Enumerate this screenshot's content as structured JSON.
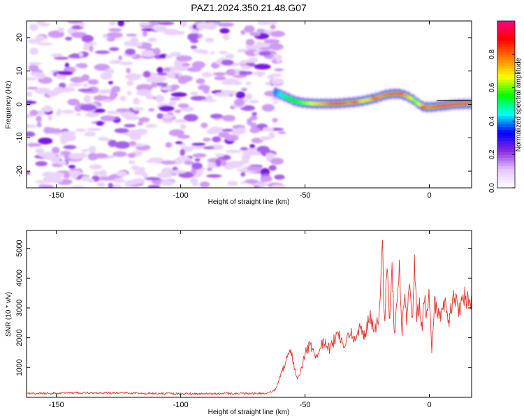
{
  "figure": {
    "title": "PAZ1.2024.350.21.48.G07"
  },
  "chart_data": [
    {
      "type": "heatmap",
      "title": "PAZ1.2024.350.21.48.G07",
      "xlabel": "Height of straight line (km)",
      "ylabel": "Frequency (Hz)",
      "xlim": [
        -162,
        17
      ],
      "ylim": [
        -25,
        25
      ],
      "x_ticks": [
        "-150",
        "-100",
        "-50",
        "0"
      ],
      "x_tick_values": [
        -150,
        -100,
        -50,
        0
      ],
      "y_ticks": [
        "20",
        "10",
        "0",
        "-10",
        "-20"
      ],
      "y_tick_values": [
        20,
        10,
        0,
        -10,
        -20
      ],
      "grid": false,
      "noise_region_x": [
        -162,
        -59
      ],
      "ridge_region_x": [
        -59,
        17
      ],
      "ridge": {
        "x": [
          -63,
          -60,
          -57,
          -54,
          -51,
          -48,
          -45,
          -42,
          -39,
          -36,
          -33,
          -30,
          -27,
          -24,
          -21,
          -18,
          -15,
          -12,
          -9,
          -6,
          -4,
          -2,
          1,
          4,
          7,
          10,
          13,
          17
        ],
        "frequency": [
          4,
          3,
          2,
          1,
          0.5,
          0.3,
          0.2,
          0.2,
          0.2,
          0.3,
          0.5,
          0.7,
          1,
          1.5,
          2,
          2.8,
          3.2,
          3.2,
          2.5,
          1.2,
          0,
          -0.8,
          -0.8,
          -0.5,
          -0.3,
          0,
          0.1,
          0.1
        ],
        "amplitude": [
          0.35,
          0.45,
          0.5,
          0.55,
          0.6,
          0.65,
          0.7,
          0.75,
          0.85,
          0.9,
          0.8,
          0.75,
          0.7,
          0.7,
          0.75,
          0.8,
          0.85,
          0.8,
          0.75,
          0.6,
          0.65,
          0.75,
          0.8,
          0.85,
          0.9,
          0.95,
          0.97,
          0.95
        ]
      },
      "colorbar": {
        "label": "Normalized spectral amplitude",
        "range": [
          0,
          1
        ],
        "ticks": [
          "0.0",
          "0.2",
          "0.4",
          "0.6",
          "0.8"
        ],
        "tick_values": [
          0,
          0.2,
          0.4,
          0.6,
          0.8
        ],
        "colors": [
          "#ffffff",
          "#e6c6ff",
          "#8a2be2",
          "#0000ff",
          "#00ffff",
          "#00ff00",
          "#ffff00",
          "#ff8000",
          "#ff0000",
          "#ff0080"
        ]
      }
    },
    {
      "type": "line",
      "xlabel": "Height of straight line (km)",
      "ylabel": "SNR (10 * v/v)",
      "xlim": [
        -162,
        17
      ],
      "ylim": [
        0,
        5600
      ],
      "x_ticks": [
        "-150",
        "-100",
        "-50",
        "0"
      ],
      "x_tick_values": [
        -150,
        -100,
        -50,
        0
      ],
      "y_ticks": [
        "1000",
        "2000",
        "3000",
        "4000",
        "5000"
      ],
      "y_tick_values": [
        1000,
        2000,
        3000,
        4000,
        5000
      ],
      "grid": false,
      "series": [
        {
          "color": "#e8332a",
          "x": [
            -162,
            -150,
            -140,
            -130,
            -120,
            -110,
            -100,
            -90,
            -80,
            -70,
            -65,
            -62,
            -60,
            -58,
            -57,
            -56,
            -55,
            -54,
            -53,
            -52,
            -51,
            -50,
            -48,
            -46,
            -44,
            -42,
            -40,
            -38,
            -36,
            -34,
            -32,
            -30,
            -28,
            -26,
            -24,
            -22,
            -20,
            -19,
            -18,
            -17,
            -16,
            -15,
            -14,
            -13,
            -12,
            -11,
            -10,
            -9,
            -8,
            -7,
            -6,
            -5,
            -4,
            -3,
            -2,
            -1,
            0,
            1,
            2,
            4,
            6,
            8,
            10,
            12,
            14,
            17
          ],
          "y": [
            130,
            140,
            150,
            150,
            145,
            130,
            120,
            120,
            130,
            125,
            140,
            250,
            700,
            1100,
            1500,
            1550,
            1300,
            900,
            650,
            850,
            1100,
            1450,
            1800,
            1300,
            1700,
            1900,
            1600,
            2000,
            2100,
            1700,
            2200,
            1900,
            2400,
            2000,
            2700,
            2200,
            2800,
            5500,
            2200,
            4800,
            2500,
            4300,
            2000,
            3300,
            4400,
            2100,
            3600,
            2400,
            4200,
            2300,
            4500,
            2600,
            3300,
            2300,
            3500,
            2600,
            3400,
            1400,
            3300,
            2700,
            3200,
            2600,
            3400,
            2900,
            3400,
            3200
          ]
        }
      ]
    }
  ]
}
